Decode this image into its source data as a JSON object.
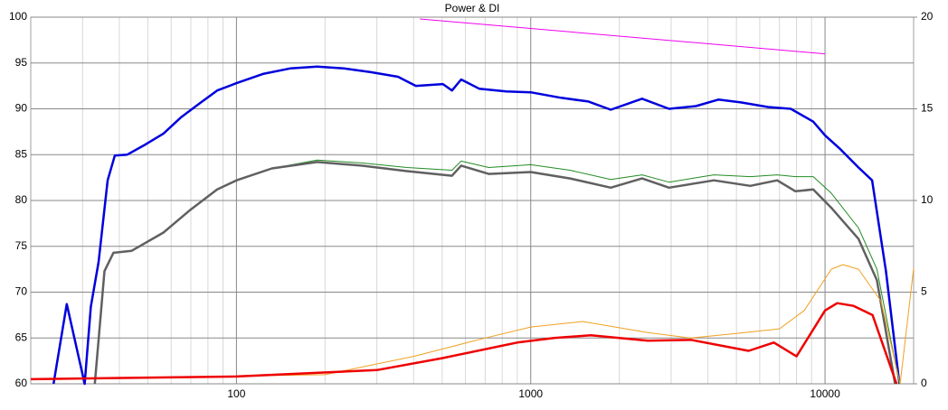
{
  "chart_data": {
    "type": "line",
    "title": "Power & DI",
    "xlim": [
      20,
      20000
    ],
    "xticks": [
      100,
      1000,
      10000
    ],
    "log_x": true,
    "minor_grid": true,
    "grid": true,
    "ylim": [
      60,
      100
    ],
    "yticks": [
      60,
      65,
      70,
      75,
      80,
      85,
      90,
      95,
      100
    ],
    "y2lim": [
      0,
      20
    ],
    "y2ticks": [
      0,
      5,
      10,
      15,
      20
    ],
    "series": [
      {
        "color": "#0000dd",
        "width": 2.5,
        "x": [
          23.9,
          26.5,
          30.5,
          32,
          34,
          36.5,
          38.6,
          42.5,
          49,
          56.5,
          65,
          75,
          86,
          100,
          123,
          152,
          188,
          232,
          286,
          354,
          407,
          503,
          540,
          580,
          668,
          826,
          1000,
          1267,
          1570,
          1870,
          2390,
          2950,
          3640,
          4340,
          5180,
          6400,
          7650,
          9120,
          10000,
          11270,
          13000,
          14450,
          16100,
          17900
        ],
        "values": [
          60,
          68.7,
          60,
          68.4,
          73.3,
          82.2,
          84.9,
          85.0,
          86.1,
          87.3,
          89.1,
          90.6,
          92.0,
          92.8,
          93.8,
          94.4,
          94.6,
          94.4,
          94.0,
          93.5,
          92.5,
          92.7,
          92.0,
          93.2,
          92.2,
          91.9,
          91.8,
          91.2,
          90.8,
          89.9,
          91.1,
          90.0,
          90.3,
          91.0,
          90.7,
          90.2,
          90.0,
          88.6,
          87.1,
          85.6,
          83.6,
          82.2,
          72.3,
          60
        ]
      },
      {
        "color": "#228b22",
        "width": 1,
        "x": [
          33,
          35.6,
          38.2,
          44,
          56.5,
          69.8,
          86,
          100,
          132,
          188,
          266,
          380,
          540,
          580,
          720,
          1000,
          1360,
          1870,
          2390,
          2950,
          4190,
          5570,
          6880,
          7930,
          9120,
          10500,
          13000,
          15000,
          17900
        ],
        "values": [
          60,
          72.3,
          74.3,
          74.5,
          76.5,
          79.0,
          81.2,
          82.2,
          83.5,
          84.4,
          84.1,
          83.6,
          83.3,
          84.3,
          83.6,
          83.9,
          83.3,
          82.3,
          82.8,
          82.0,
          82.8,
          82.6,
          82.8,
          82.6,
          82.6,
          80.8,
          77.0,
          72.5,
          60
        ]
      },
      {
        "color": "#606060",
        "width": 2.5,
        "x": [
          33,
          35.6,
          38.2,
          44,
          56.5,
          69.8,
          86,
          100,
          132,
          188,
          266,
          380,
          540,
          580,
          720,
          1000,
          1360,
          1870,
          2390,
          2950,
          4190,
          5570,
          6880,
          7930,
          9120,
          10500,
          13000,
          15000,
          17300
        ],
        "values": [
          60,
          72.3,
          74.3,
          74.5,
          76.5,
          79.0,
          81.2,
          82.2,
          83.5,
          84.2,
          83.8,
          83.2,
          82.7,
          83.8,
          82.9,
          83.1,
          82.4,
          81.4,
          82.4,
          81.4,
          82.2,
          81.6,
          82.2,
          81.0,
          81.2,
          79.2,
          75.8,
          71.3,
          60
        ]
      },
      {
        "color": "#ee00ee",
        "width": 1,
        "x": [
          420,
          10000
        ],
        "values": [
          99.8,
          96.0
        ]
      },
      {
        "color": "#f0a020",
        "width": 1,
        "axis": "y2",
        "x": [
          20,
          200,
          400,
          700,
          1000,
          1500,
          2500,
          3500,
          5000,
          7000,
          8500,
          10500,
          11500,
          13000,
          15500,
          18000,
          20000
        ],
        "values": [
          0.25,
          0.5,
          1.5,
          2.5,
          3.1,
          3.4,
          2.8,
          2.5,
          2.75,
          3.0,
          4.0,
          6.25,
          6.5,
          6.25,
          4.5,
          0,
          6.3
        ]
      },
      {
        "color": "#ee0000",
        "width": 2.5,
        "axis": "y2",
        "x": [
          20,
          100,
          300,
          500,
          900,
          1200,
          1600,
          2500,
          3500,
          5500,
          6700,
          8000,
          10000,
          11000,
          12500,
          14500,
          17500
        ],
        "values": [
          0.25,
          0.4,
          0.75,
          1.4,
          2.25,
          2.5,
          2.65,
          2.35,
          2.4,
          1.8,
          2.25,
          1.5,
          4.0,
          4.4,
          4.25,
          3.75,
          0
        ]
      }
    ]
  }
}
